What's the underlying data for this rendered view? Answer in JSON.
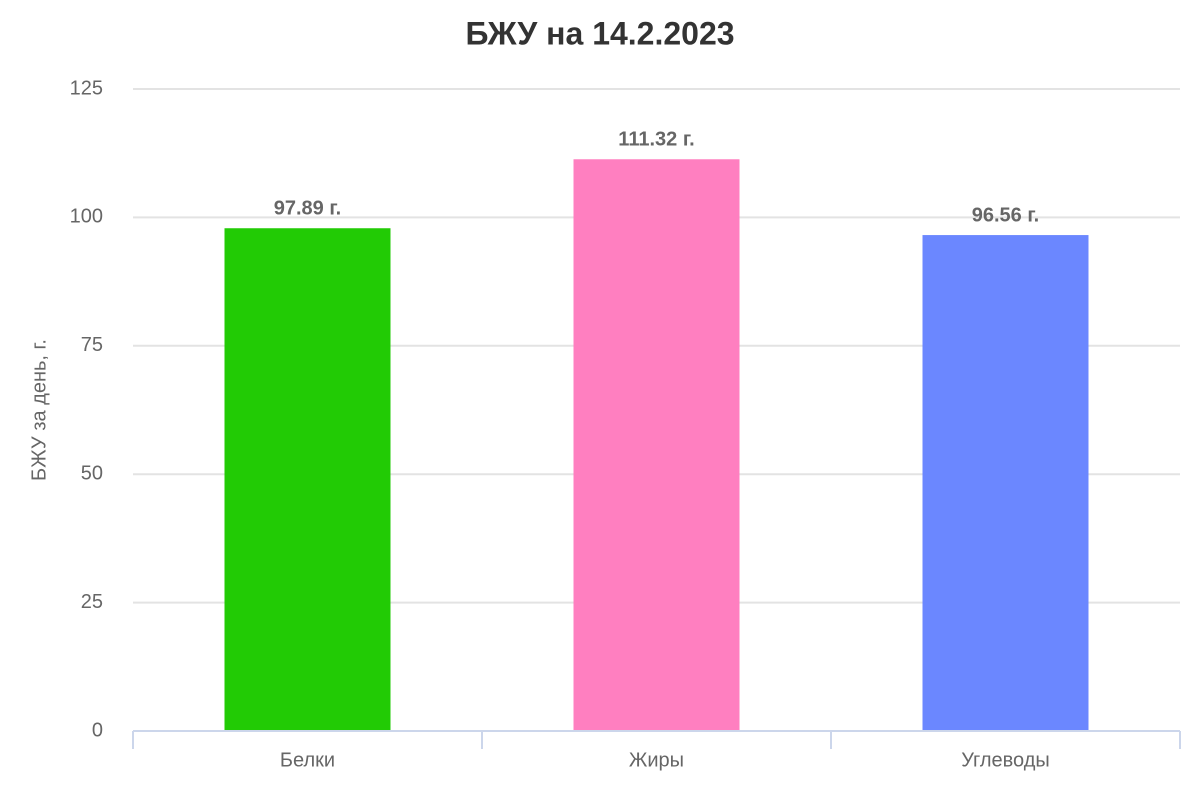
{
  "chart_data": {
    "type": "bar",
    "title": "БЖУ на 14.2.2023",
    "y_label": "БЖУ за день, г.",
    "categories": [
      "Белки",
      "Жиры",
      "Углеводы"
    ],
    "values": [
      97.89,
      111.32,
      96.56
    ],
    "value_labels": [
      "97.89 г.",
      "111.32 г.",
      "96.56 г."
    ],
    "colors": [
      "#22cb05",
      "#ff7fc0",
      "#6b87ff"
    ],
    "ylim": [
      0,
      125
    ],
    "yticks": [
      0,
      25,
      50,
      75,
      100,
      125
    ],
    "grid": true
  }
}
